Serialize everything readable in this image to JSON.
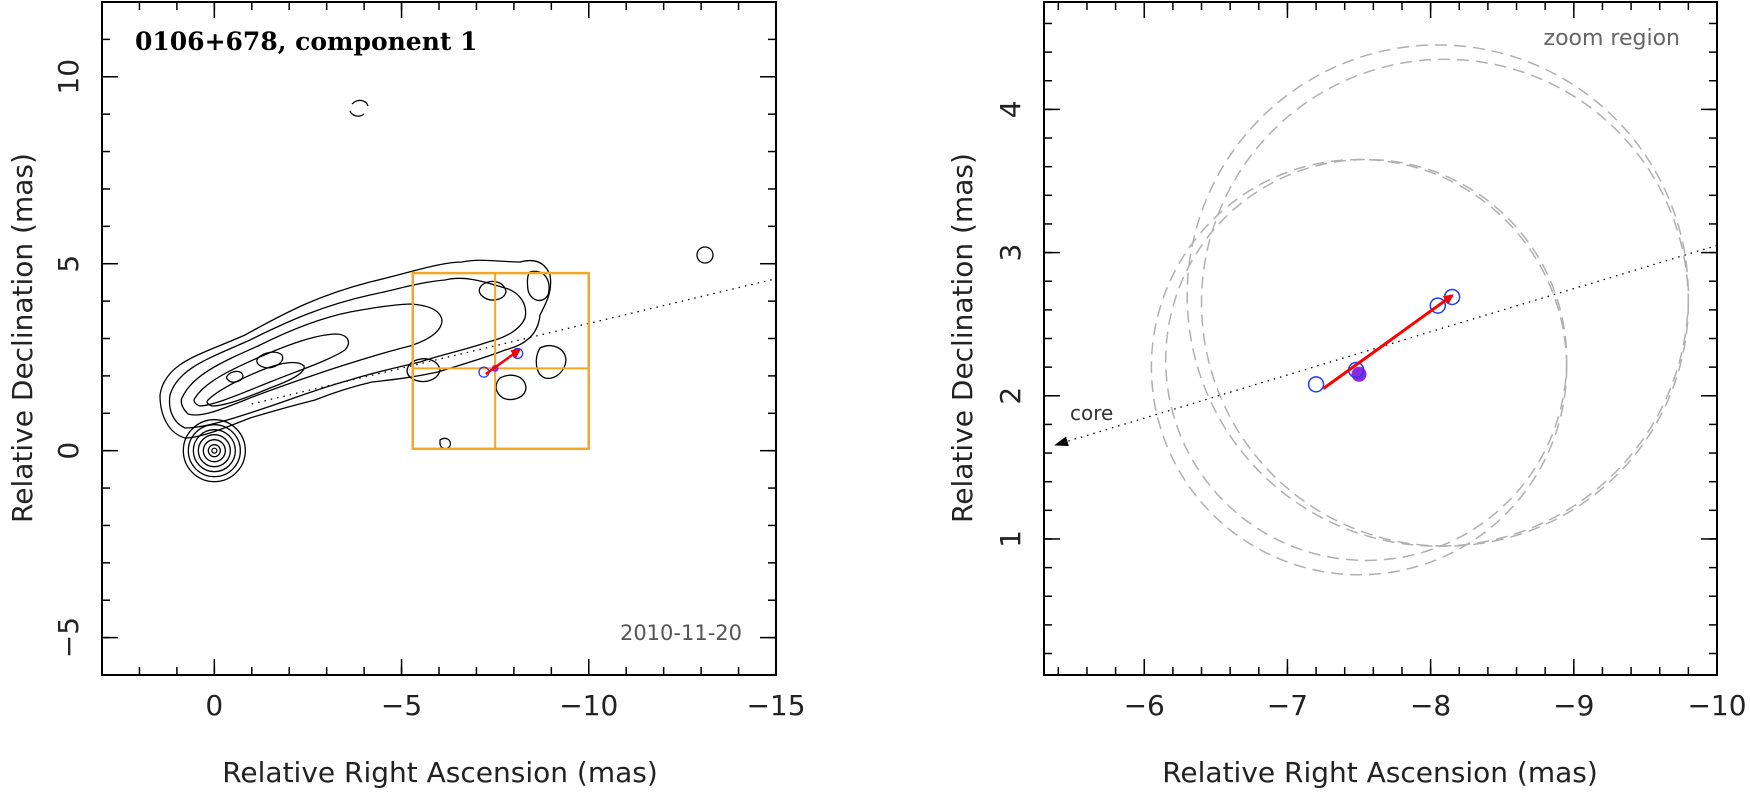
{
  "chart_data": [
    {
      "type": "scatter",
      "panel": "left",
      "title": "0106+678, component 1",
      "epoch": "2010-11-20",
      "xlabel": "Relative Right Ascension (mas)",
      "ylabel": "Relative Declination (mas)",
      "xlim": [
        3,
        -15
      ],
      "ylim": [
        -6,
        12
      ],
      "xticks": [
        0,
        -5,
        -10,
        -15
      ],
      "xtick_labels": [
        "0",
        "−5",
        "−10",
        "−15"
      ],
      "yticks": [
        -5,
        0,
        5,
        10
      ],
      "ytick_labels": [
        "−5",
        "0",
        "5",
        "10"
      ],
      "contour_peak": [
        0,
        0
      ],
      "component_positions": [
        {
          "x": -7.2,
          "y": 2.1,
          "marker": "open"
        },
        {
          "x": -7.5,
          "y": 2.2,
          "marker": "filled"
        },
        {
          "x": -8.1,
          "y": 2.6,
          "marker": "open"
        }
      ],
      "motion_vector": {
        "from": [
          -7.25,
          2.05
        ],
        "to": [
          -8.15,
          2.7
        ]
      },
      "zoom_box": {
        "ra": [
          -5.3,
          -10.0
        ],
        "dec": [
          0.05,
          4.75
        ]
      },
      "jet_axis": {
        "from": [
          -1.0,
          1.25
        ],
        "to": [
          -15.0,
          4.6
        ]
      },
      "colors": {
        "contour": "#000000",
        "zoom_box": "#f5a623",
        "vector": "#ff0000",
        "marker": "#1f3cff",
        "filled_marker": "#8a2be2"
      }
    },
    {
      "type": "scatter",
      "panel": "right",
      "label": "zoom region",
      "core_label": "core",
      "xlabel": "Relative Right Ascension (mas)",
      "ylabel": "Relative Declination (mas)",
      "xlim": [
        -5.3,
        -10.0
      ],
      "ylim": [
        0.05,
        4.75
      ],
      "xticks": [
        -6,
        -7,
        -8,
        -9,
        -10
      ],
      "xtick_labels": [
        "−6",
        "−7",
        "−8",
        "−9",
        "−10"
      ],
      "yticks": [
        1,
        2,
        3,
        4
      ],
      "ytick_labels": [
        "1",
        "2",
        "3",
        "4"
      ],
      "component_positions": [
        {
          "x": -7.2,
          "y": 2.08,
          "marker": "open"
        },
        {
          "x": -7.5,
          "y": 2.15,
          "marker": "filled"
        },
        {
          "x": -7.48,
          "y": 2.18,
          "marker": "open"
        },
        {
          "x": -8.05,
          "y": 2.63,
          "marker": "open"
        },
        {
          "x": -8.15,
          "y": 2.69,
          "marker": "open"
        }
      ],
      "motion_vector": {
        "from": [
          -7.25,
          2.05
        ],
        "to": [
          -8.15,
          2.7
        ]
      },
      "jet_axis": {
        "from": [
          -5.3,
          1.63
        ],
        "to": [
          -10.0,
          3.05
        ]
      },
      "beam_ellipses": [
        {
          "cx": -7.5,
          "cy": 2.2,
          "r": 1.45
        },
        {
          "cx": -7.55,
          "cy": 2.25,
          "r": 1.4
        },
        {
          "cx": -8.05,
          "cy": 2.7,
          "r": 1.75
        },
        {
          "cx": -8.1,
          "cy": 2.65,
          "r": 1.7
        }
      ],
      "colors": {
        "ellipse": "#b0b0b0",
        "vector": "#ff0000",
        "marker": "#1f3cff",
        "filled_marker": "#8a2be2"
      }
    }
  ]
}
